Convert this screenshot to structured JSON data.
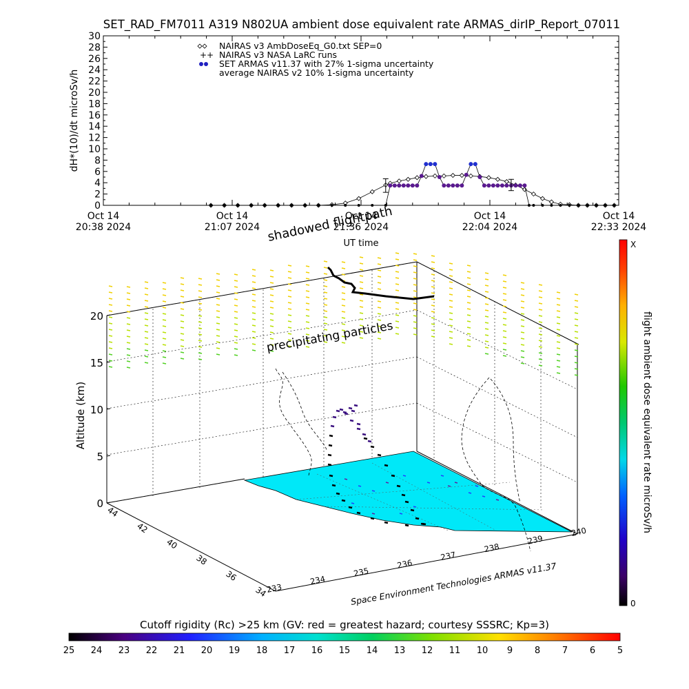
{
  "chart_data": [
    {
      "type": "scatter",
      "title": "SET_RAD_FM7011  A319 N802UA ambient dose equivalent rate ARMAS_dirIP_Report_07011",
      "ylabel": "dH*(10)/dt microSv/h",
      "xlabel": "UT time",
      "ylim": [
        0,
        30
      ],
      "yticks": [
        "0",
        "2",
        "4",
        "6",
        "8",
        "10",
        "12",
        "14",
        "16",
        "18",
        "20",
        "22",
        "24",
        "26",
        "28",
        "30"
      ],
      "xticks": [
        {
          "day": "Oct 14",
          "time": "20:38 2024"
        },
        {
          "day": "Oct 14",
          "time": "21:07 2024"
        },
        {
          "day": "Oct 14",
          "time": "21:36 2024"
        },
        {
          "day": "Oct 14",
          "time": "22:04 2024"
        },
        {
          "day": "Oct 14",
          "time": "22:33 2024"
        }
      ],
      "xrange_minutes": [
        0,
        115
      ],
      "legend": [
        {
          "symbol": "◇",
          "label": "NAIRAS v3 AmbDoseEq_G0.txt SEP=0"
        },
        {
          "symbol": "+",
          "label": "NAIRAS v3 NASA LaRC runs"
        },
        {
          "symbol": "●",
          "label": "SET ARMAS v11.37 with 27% 1-sigma uncertainty",
          "color": "#2020c0"
        },
        {
          "symbol": "",
          "label": "average NAIRAS v2 10% 1-sigma uncertainty"
        }
      ],
      "series": [
        {
          "name": "NAIRAS v3 AmbDoseEq_G0.txt SEP=0",
          "x": [
            24,
            27,
            30,
            33,
            36,
            39,
            42,
            45,
            48,
            51,
            54,
            57,
            60,
            63,
            64,
            66,
            68,
            70,
            72,
            74,
            76,
            78,
            80,
            82,
            84,
            86,
            88,
            90,
            92,
            94,
            96,
            98,
            100,
            102,
            104,
            106,
            108,
            110,
            112,
            114
          ],
          "y": [
            0,
            0,
            0,
            0,
            0,
            0,
            0,
            0,
            0,
            0.1,
            0.4,
            1.2,
            2.4,
            3.6,
            3.9,
            4.3,
            4.6,
            4.9,
            5.1,
            5.2,
            5.2,
            5.3,
            5.3,
            5.2,
            5.1,
            4.9,
            4.6,
            4.2,
            3.6,
            2.8,
            2.0,
            1.2,
            0.6,
            0.2,
            0.1,
            0,
            0,
            0,
            0,
            0
          ]
        },
        {
          "name": "SET ARMAS v11.37 with 27% 1-sigma uncertainty",
          "x": [
            24,
            27,
            30,
            33,
            36,
            39,
            42,
            45,
            48,
            51,
            54,
            57,
            60,
            63,
            64,
            65,
            66,
            67,
            68,
            69,
            70,
            71,
            72,
            73,
            74,
            75,
            76,
            77,
            78,
            79,
            80,
            81,
            82,
            83,
            84,
            85,
            86,
            87,
            88,
            89,
            90,
            91,
            92,
            93,
            94,
            95,
            96,
            98,
            100,
            102,
            104,
            106,
            108,
            110,
            112,
            114
          ],
          "y": [
            0,
            0,
            0,
            0,
            0,
            0,
            0,
            0,
            0,
            0,
            0,
            0,
            0,
            0,
            3.5,
            3.5,
            3.5,
            3.5,
            3.5,
            3.5,
            3.5,
            5.2,
            7.3,
            7.3,
            7.3,
            5.0,
            3.5,
            3.5,
            3.5,
            3.5,
            3.5,
            5.4,
            7.3,
            7.3,
            5.0,
            3.5,
            3.5,
            3.5,
            3.5,
            3.5,
            3.5,
            3.5,
            3.5,
            3.5,
            3.5,
            0,
            0,
            0,
            0,
            0,
            0,
            0,
            0,
            0,
            0,
            0
          ]
        }
      ],
      "error_bars": [
        {
          "x": 63,
          "y": 3.5,
          "err": 1.2
        },
        {
          "x": 91,
          "y": 3.6,
          "err": 1.0
        }
      ]
    },
    {
      "type": "scatter3d",
      "zlabel": "Altitude (km)",
      "zticks": [
        "0",
        "5",
        "10",
        "15",
        "20"
      ],
      "lat_ticks": [
        "44",
        "42",
        "40",
        "38",
        "36",
        "34"
      ],
      "lon_ticks": [
        "233",
        "234",
        "235",
        "236",
        "237",
        "238",
        "239",
        "240"
      ],
      "annotations": [
        "shadowed flightpath",
        "precipitating particles"
      ],
      "credit": "Space Environment Technologies ARMAS v11.37",
      "colorbar": {
        "label": "flight ambient dose equivalent rate microSv/h",
        "top": "X",
        "bottom": "0"
      }
    },
    {
      "type": "colorbar",
      "title": "Cutoff rigidity (Rc) >25 km (GV: red = greatest hazard; courtesy SSSRC; Kp=3)",
      "ticks": [
        "25",
        "24",
        "23",
        "22",
        "21",
        "20",
        "19",
        "18",
        "17",
        "16",
        "15",
        "14",
        "13",
        "12",
        "11",
        "10",
        "9",
        "8",
        "7",
        "6",
        "5"
      ]
    }
  ]
}
